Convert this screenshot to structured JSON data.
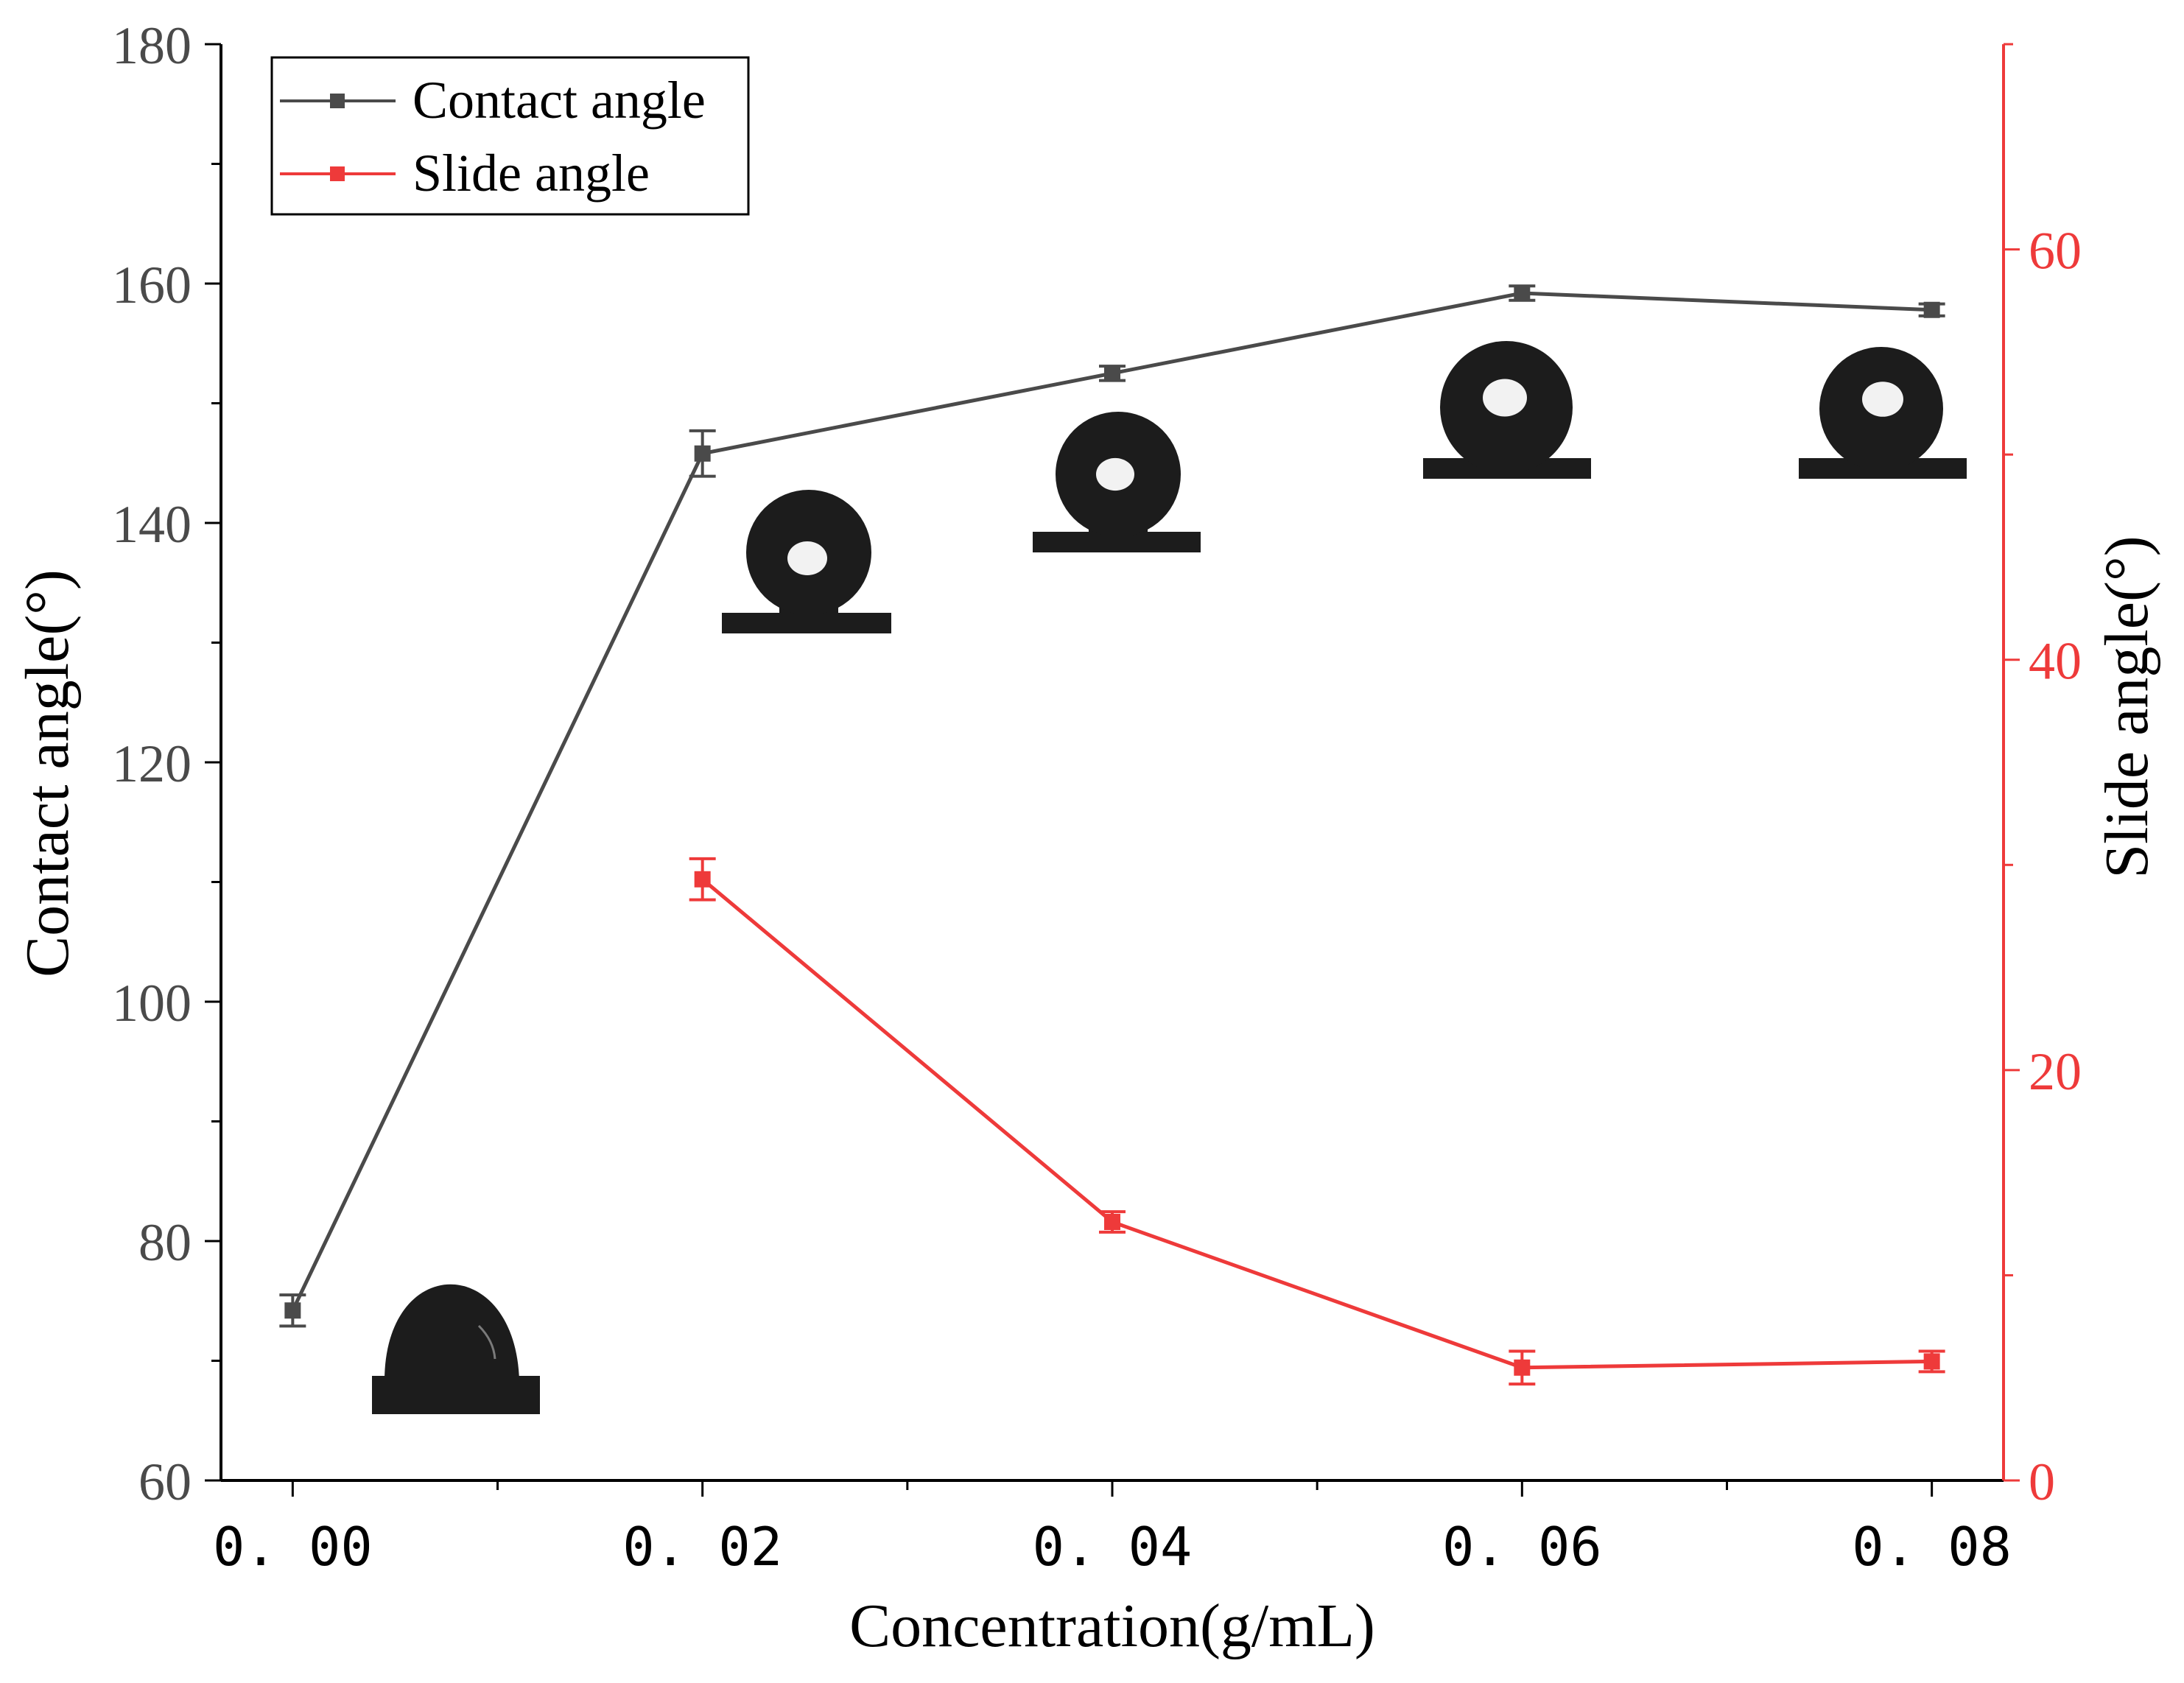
{
  "chart_data": {
    "type": "line",
    "x": [
      0.0,
      0.02,
      0.04,
      0.06,
      0.08
    ],
    "x_tick_labels": [
      "0. 00",
      "0. 02",
      "0. 04",
      "0. 06",
      "0. 08"
    ],
    "xlabel": "Concentration(g/mL)",
    "ylabel": "Contact angle(°)",
    "y2label": "Slide angle(°)",
    "xlim": [
      -0.0035,
      0.0835
    ],
    "ylim": [
      60,
      180
    ],
    "y2lim": [
      0,
      70
    ],
    "y_ticks": [
      60,
      80,
      100,
      120,
      140,
      160,
      180
    ],
    "y2_ticks": [
      0,
      20,
      40,
      60
    ],
    "grid": false,
    "legend_position": "top-left",
    "series": [
      {
        "name": "Contact angle",
        "axis": "left",
        "color": "#4a4a4a",
        "x": [
          0.0,
          0.02,
          0.04,
          0.06,
          0.08
        ],
        "values": [
          74.2,
          145.8,
          152.5,
          159.2,
          157.8
        ],
        "errors": [
          1.3,
          1.9,
          0.6,
          0.6,
          0.5
        ]
      },
      {
        "name": "Slide angle",
        "axis": "right",
        "color": "#ee3a3a",
        "x": [
          0.02,
          0.04,
          0.06,
          0.08
        ],
        "values": [
          29.3,
          12.6,
          5.5,
          5.8
        ],
        "errors": [
          1.0,
          0.5,
          0.8,
          0.5
        ]
      }
    ],
    "annotations": [
      "droplet-image-0.00",
      "droplet-image-0.02",
      "droplet-image-0.04",
      "droplet-image-0.06",
      "droplet-image-0.08"
    ]
  },
  "colors": {
    "left_axis": "#4a4a4a",
    "right_axis": "#ee3a3a",
    "droplet": "#1c1c1c"
  }
}
